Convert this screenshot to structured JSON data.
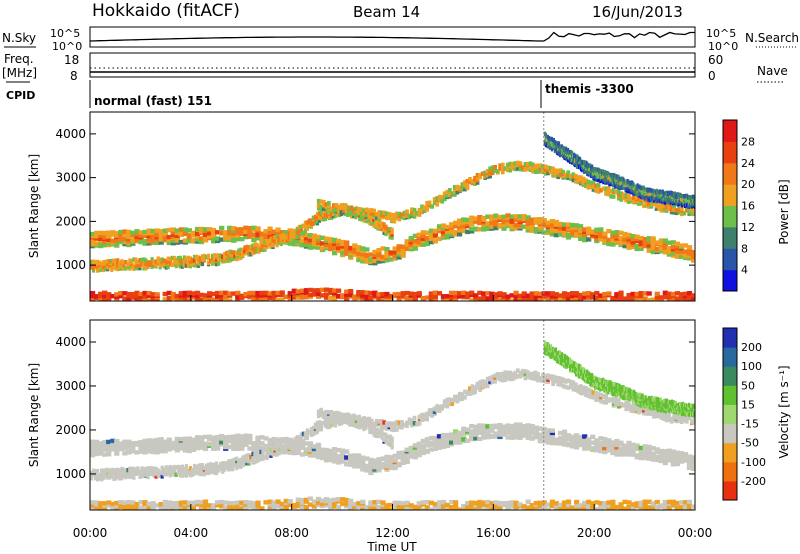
{
  "header": {
    "station": "Hokkaido (fitACF)",
    "beam": "Beam 14",
    "date": "16/Jun/2013"
  },
  "aux": {
    "nsky_label": "N.Sky",
    "nsearch_label": "N.Search",
    "noise_ticks": [
      "10^5",
      "10^0"
    ],
    "freq_label": "Freq.",
    "freq_unit": "[MHz]",
    "freq_ticks": [
      "18",
      "8"
    ],
    "nave_label": "Nave",
    "nave_ticks": [
      "60",
      "0"
    ],
    "cpid_label": "CPID",
    "cpid_1": "normal (fast) 151",
    "cpid_2": "themis -3300"
  },
  "chart_data": [
    {
      "type": "heatmap",
      "parameter": "Power",
      "ylabel": "Slant Range [km]",
      "xlabel": "Time UT",
      "ylim": [
        180,
        4500
      ],
      "y_ticks": [
        "1000",
        "2000",
        "3000",
        "4000"
      ],
      "colorbar_label": "Power [dB]",
      "colorbar_ticks": [
        "28",
        "24",
        "20",
        "16",
        "12",
        "8",
        "4"
      ],
      "colors": [
        "#1010e0",
        "#2a55a8",
        "#3e7f6e",
        "#6cbf4a",
        "#f0a020",
        "#f07818",
        "#e84010",
        "#e01818"
      ],
      "bands": [
        {
          "name": "low",
          "t": [
            0,
            1,
            2,
            3,
            4,
            5,
            6,
            7,
            8,
            9,
            10,
            11,
            12,
            13,
            14,
            15,
            16,
            17,
            18,
            19,
            20,
            21,
            22,
            23,
            24
          ],
          "r": [
            300,
            300,
            300,
            300,
            300,
            300,
            300,
            300,
            350,
            380,
            350,
            300,
            300,
            300,
            300,
            300,
            300,
            300,
            300,
            300,
            300,
            300,
            300,
            300,
            300
          ],
          "w": 200,
          "p": 26
        },
        {
          "name": "main",
          "t": [
            0,
            2,
            4,
            6,
            8,
            10,
            11,
            12,
            13,
            14,
            15,
            16,
            17,
            18,
            19,
            20,
            21,
            22,
            23,
            24
          ],
          "r": [
            1600,
            1650,
            1700,
            1750,
            1650,
            1400,
            1200,
            1300,
            1600,
            1800,
            1950,
            2000,
            2000,
            1900,
            1800,
            1700,
            1600,
            1500,
            1400,
            1250
          ],
          "w": 320,
          "p": 22
        },
        {
          "name": "mid",
          "t": [
            0,
            2,
            4,
            5,
            6,
            8,
            9,
            10,
            11,
            12
          ],
          "r": [
            1000,
            1050,
            1100,
            1150,
            1300,
            1700,
            2100,
            2300,
            2100,
            1700
          ],
          "w": 220,
          "p": 20
        },
        {
          "name": "upper",
          "t": [
            9,
            10,
            11,
            12,
            13,
            14,
            15,
            16,
            17,
            18,
            19,
            20,
            21,
            22,
            23,
            24
          ],
          "r": [
            2400,
            2300,
            2200,
            2100,
            2250,
            2600,
            2900,
            3200,
            3300,
            3200,
            3050,
            2800,
            2600,
            2450,
            2300,
            2250
          ],
          "w": 180,
          "p": 18
        },
        {
          "name": "high",
          "t": [
            18,
            19,
            20,
            21,
            22,
            23,
            24
          ],
          "r": [
            3900,
            3500,
            3100,
            2900,
            2650,
            2550,
            2450
          ],
          "w": 250,
          "p": 12
        }
      ]
    },
    {
      "type": "heatmap",
      "parameter": "Velocity",
      "ylabel": "Slant Range [km]",
      "xlabel": "Time UT",
      "ylim": [
        180,
        4500
      ],
      "y_ticks": [
        "1000",
        "2000",
        "3000",
        "4000"
      ],
      "colorbar_label": "Velocity [m s⁻¹]",
      "colorbar_ticks": [
        "200",
        "100",
        "50",
        "15",
        "-15",
        "-50",
        "-100",
        "-200"
      ],
      "colors": [
        "#2030b0",
        "#2a68a0",
        "#3a8a60",
        "#60c030",
        "#a0d870",
        "#c8c8c0",
        "#f0a020",
        "#f07010",
        "#e83010"
      ]
    }
  ],
  "time_axis": {
    "ticks": [
      "00:00",
      "04:00",
      "08:00",
      "12:00",
      "16:00",
      "20:00",
      "00:00"
    ],
    "label": "Time UT"
  }
}
